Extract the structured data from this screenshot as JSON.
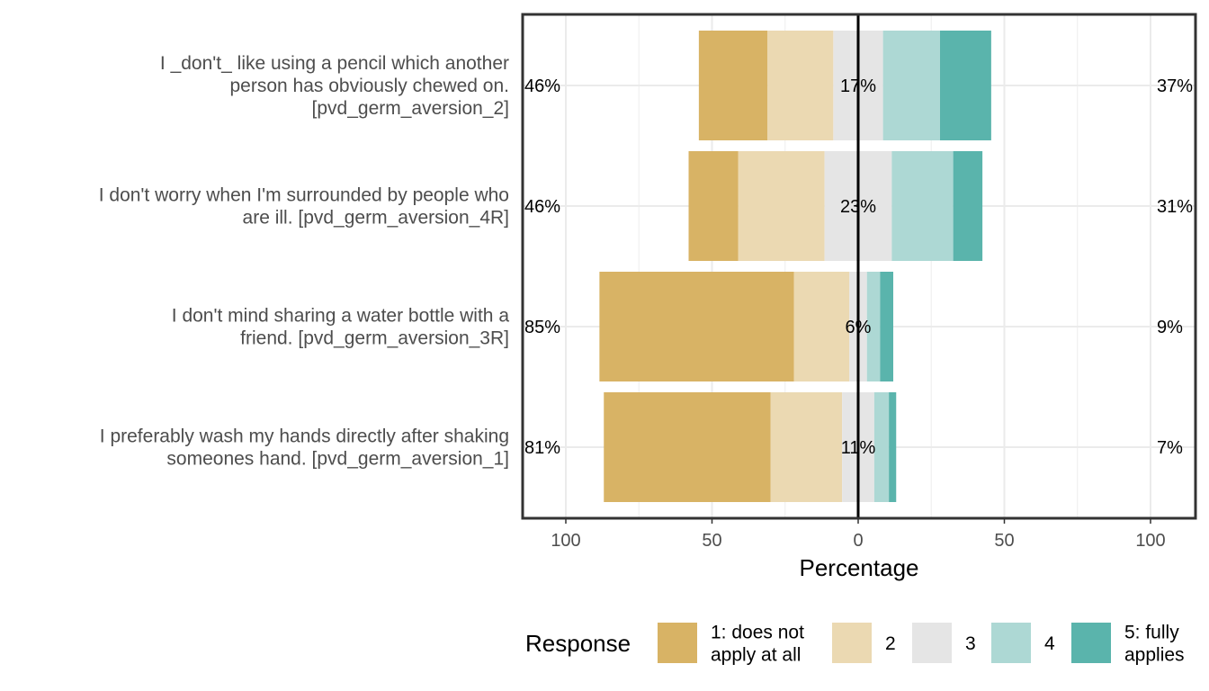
{
  "chart_data": {
    "type": "bar",
    "orientation": "horizontal-diverging",
    "xlabel": "Percentage",
    "xlim": [
      -100,
      100
    ],
    "x_ticks": [
      -100,
      -50,
      0,
      50,
      100
    ],
    "x_tick_labels": [
      "100",
      "50",
      "0",
      "50",
      "100"
    ],
    "grid": true,
    "legend_position": "bottom",
    "legend_title": "Response",
    "levels": [
      {
        "name": "1: does not apply at all",
        "lines": [
          "1: does not",
          "apply at all"
        ],
        "color": "#D8B365"
      },
      {
        "name": "2",
        "lines": [
          "2"
        ],
        "color": "#EBD9B2"
      },
      {
        "name": "3",
        "lines": [
          "3"
        ],
        "color": "#E5E5E5"
      },
      {
        "name": "4",
        "lines": [
          "4"
        ],
        "color": "#ADD8D4"
      },
      {
        "name": "5: fully applies",
        "lines": [
          "5: fully",
          "applies"
        ],
        "color": "#5AB4AC"
      }
    ],
    "items": [
      {
        "lines": [
          "I _don't_ like using a pencil which another",
          "person has obviously chewed on.",
          "[pvd_germ_aversion_2]"
        ],
        "values": [
          23.5,
          22.5,
          17,
          19.5,
          17.5
        ],
        "left_label": "46%",
        "center_label": "17%",
        "right_label": "37%"
      },
      {
        "lines": [
          "I don't worry when I'm surrounded by people who",
          "are ill. [pvd_germ_aversion_4R]"
        ],
        "values": [
          17,
          29.5,
          23,
          21,
          10
        ],
        "left_label": "46%",
        "center_label": "23%",
        "right_label": "31%"
      },
      {
        "lines": [
          "I don't mind sharing a water bottle with a",
          "friend. [pvd_germ_aversion_3R]"
        ],
        "values": [
          66.5,
          19,
          6,
          4.5,
          4.5
        ],
        "left_label": "85%",
        "center_label": "6%",
        "right_label": "9%"
      },
      {
        "lines": [
          "I preferably wash my hands directly after shaking",
          "someones hand. [pvd_germ_aversion_1]"
        ],
        "values": [
          57,
          24.5,
          11,
          5,
          2.5
        ],
        "left_label": "81%",
        "center_label": "11%",
        "right_label": "7%"
      }
    ]
  }
}
